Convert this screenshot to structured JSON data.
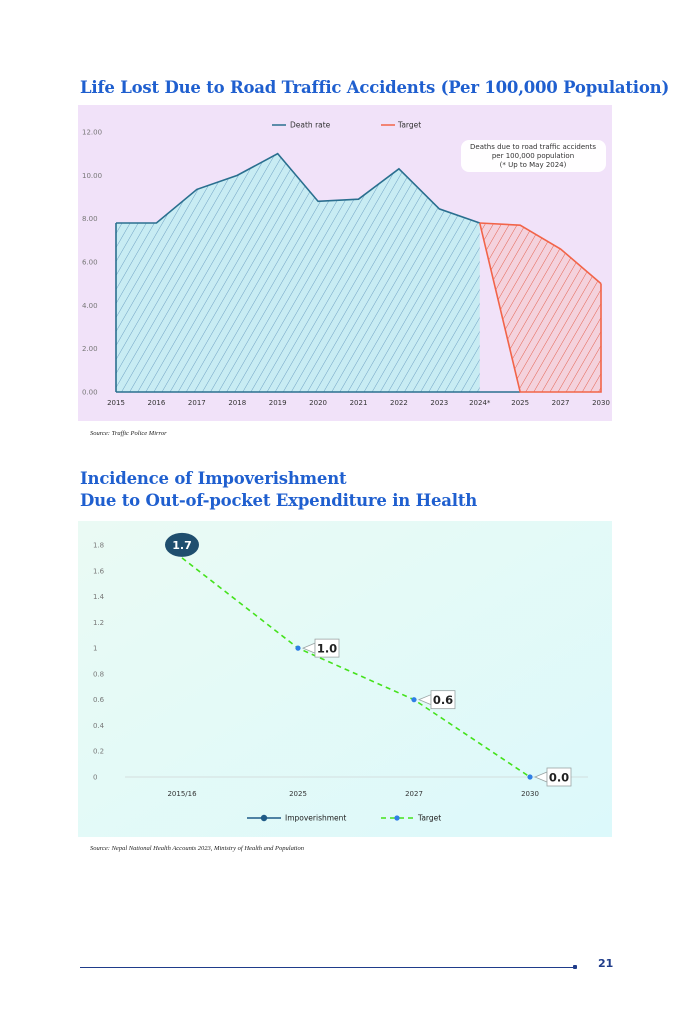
{
  "chart_data": [
    {
      "type": "area",
      "title": "Life Lost Due to Road Traffic Accidents (Per 100,000 Population)",
      "categories": [
        "2015",
        "2016",
        "2017",
        "2018",
        "2019",
        "2020",
        "2021",
        "2022",
        "2023",
        "2024*",
        "2025",
        "2027",
        "2030"
      ],
      "series": [
        {
          "name": "Death rate",
          "color": "#2a6f8f",
          "x": [
            "2015",
            "2016",
            "2017",
            "2018",
            "2019",
            "2020",
            "2021",
            "2022",
            "2023",
            "2024*"
          ],
          "values": [
            7.8,
            7.8,
            9.35,
            10.0,
            11.0,
            8.8,
            8.9,
            10.3,
            8.45,
            7.8
          ]
        },
        {
          "name": "Target",
          "color": "#f26449",
          "x": [
            "2024*",
            "2025",
            "2027",
            "2030"
          ],
          "values": [
            7.8,
            7.7,
            6.6,
            5.0
          ]
        }
      ],
      "yticks": [
        "0.00",
        "2.00",
        "4.00",
        "6.00",
        "8.00",
        "10.00",
        "12.00"
      ],
      "ylim": [
        0,
        12
      ],
      "annotation": [
        "Deaths due to road traffic accidents",
        "per 100,000 population",
        "(* Up to May 2024)"
      ],
      "source": "Source: Traffic Police Mirror",
      "legend_position": "top"
    },
    {
      "type": "line",
      "title_lines": [
        "Incidence of Impoverishment",
        "Due to Out-of-pocket Expenditure in Health"
      ],
      "categories": [
        "2015/16",
        "2025",
        "2027",
        "2030"
      ],
      "series": [
        {
          "name": "Impoverishment",
          "color": "#1f5b87",
          "values": [
            1.7,
            null,
            null,
            null
          ]
        },
        {
          "name": "Target",
          "color": "#44e21c",
          "values": [
            1.7,
            1.0,
            0.6,
            0.0
          ]
        }
      ],
      "data_labels": [
        "1.7",
        "1.0",
        "0.6",
        "0.0"
      ],
      "yticks": [
        "0",
        "0.2",
        "0.4",
        "0.6",
        "0.8",
        "1",
        "1.2",
        "1.4",
        "1.6",
        "1.8"
      ],
      "ylim": [
        0,
        1.8
      ],
      "source": "Source: Nepal National Health Accounts 2023, Ministry of Health and Population",
      "legend_position": "bottom"
    }
  ],
  "page": {
    "number": "21"
  }
}
